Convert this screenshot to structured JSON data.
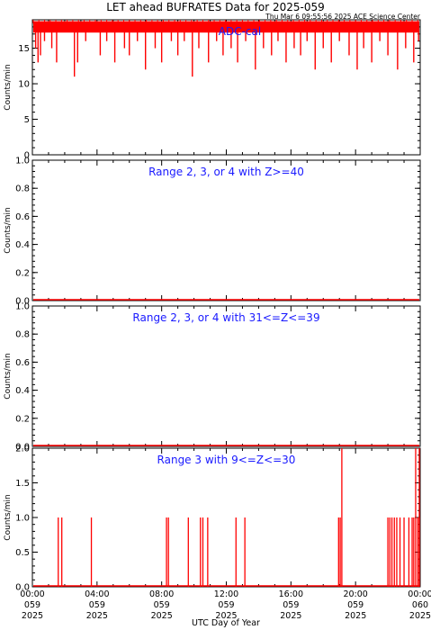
{
  "title": "LET ahead BUFRATES Data for 2025-059",
  "timestamp": "Thu Mar  6 09:55:56 2025 ACE Science Center",
  "x_axis_label": "UTC Day of Year",
  "x_ticks": [
    {
      "hour": 0,
      "time": "00:00",
      "doy": "059",
      "year": "2025"
    },
    {
      "hour": 4,
      "time": "04:00",
      "doy": "059",
      "year": "2025"
    },
    {
      "hour": 8,
      "time": "08:00",
      "doy": "059",
      "year": "2025"
    },
    {
      "hour": 12,
      "time": "12:00",
      "doy": "059",
      "year": "2025"
    },
    {
      "hour": 16,
      "time": "16:00",
      "doy": "059",
      "year": "2025"
    },
    {
      "hour": 20,
      "time": "20:00",
      "doy": "059",
      "year": "2025"
    },
    {
      "hour": 24,
      "time": "00:00",
      "doy": "060",
      "year": "2025"
    }
  ],
  "colors": {
    "data": "#ff0000",
    "panel_label": "#1a1aff",
    "axes": "#000000"
  },
  "chart_data": [
    {
      "type": "line",
      "title": "ADC-cal",
      "ylabel": "Counts/min",
      "xlim": [
        0,
        24
      ],
      "ylim": [
        0,
        19
      ],
      "yticks": [
        0,
        5,
        10,
        15
      ],
      "baseline": 18,
      "dips": [
        [
          0.2,
          15
        ],
        [
          0.35,
          13
        ],
        [
          0.5,
          14
        ],
        [
          0.75,
          16
        ],
        [
          1.2,
          15
        ],
        [
          1.5,
          13
        ],
        [
          2.6,
          11
        ],
        [
          2.8,
          13
        ],
        [
          3.3,
          16
        ],
        [
          4.2,
          14
        ],
        [
          4.6,
          16
        ],
        [
          5.1,
          13
        ],
        [
          5.7,
          15
        ],
        [
          6.0,
          14
        ],
        [
          6.5,
          16
        ],
        [
          7.0,
          12
        ],
        [
          7.6,
          15
        ],
        [
          8.0,
          13
        ],
        [
          8.6,
          16
        ],
        [
          9.0,
          14
        ],
        [
          9.4,
          16
        ],
        [
          9.9,
          11
        ],
        [
          10.3,
          15
        ],
        [
          10.9,
          13
        ],
        [
          11.4,
          16
        ],
        [
          11.8,
          14
        ],
        [
          12.3,
          15
        ],
        [
          12.7,
          13
        ],
        [
          13.2,
          16
        ],
        [
          13.8,
          12
        ],
        [
          14.3,
          15
        ],
        [
          14.8,
          14
        ],
        [
          15.2,
          16
        ],
        [
          15.7,
          13
        ],
        [
          16.2,
          15
        ],
        [
          16.6,
          14
        ],
        [
          17.0,
          16
        ],
        [
          17.5,
          12
        ],
        [
          18.0,
          15
        ],
        [
          18.5,
          13
        ],
        [
          19.0,
          16
        ],
        [
          19.6,
          14
        ],
        [
          20.1,
          12
        ],
        [
          20.5,
          15
        ],
        [
          21.0,
          13
        ],
        [
          21.5,
          16
        ],
        [
          22.0,
          14
        ],
        [
          22.6,
          12
        ],
        [
          23.1,
          15
        ],
        [
          23.6,
          13
        ],
        [
          23.9,
          16
        ]
      ]
    },
    {
      "type": "line",
      "title": "Range 2, 3, or 4 with Z>=40",
      "ylabel": "Counts/min",
      "xlim": [
        0,
        24
      ],
      "ylim": [
        0,
        1
      ],
      "yticks": [
        0.0,
        0.2,
        0.4,
        0.6,
        0.8,
        1.0
      ],
      "baseline": 0,
      "spikes": []
    },
    {
      "type": "line",
      "title": "Range 2, 3, or 4 with 31<=Z<=39",
      "ylabel": "Counts/min",
      "xlim": [
        0,
        24
      ],
      "ylim": [
        0,
        1
      ],
      "yticks": [
        0.0,
        0.2,
        0.4,
        0.6,
        0.8,
        1.0
      ],
      "baseline": 0,
      "spikes": []
    },
    {
      "type": "line",
      "title": "Range 3 with 9<=Z<=30",
      "ylabel": "Counts/min",
      "xlim": [
        0,
        24
      ],
      "ylim": [
        0,
        2
      ],
      "yticks": [
        0.0,
        0.5,
        1.0,
        1.5,
        2.0
      ],
      "baseline": 0,
      "spikes": [
        [
          1.6,
          1
        ],
        [
          1.82,
          1
        ],
        [
          3.65,
          1
        ],
        [
          8.3,
          1
        ],
        [
          8.42,
          1
        ],
        [
          9.65,
          1
        ],
        [
          10.4,
          1
        ],
        [
          10.55,
          1
        ],
        [
          10.85,
          1
        ],
        [
          12.6,
          1
        ],
        [
          13.15,
          1
        ],
        [
          18.95,
          1
        ],
        [
          19.05,
          1
        ],
        [
          19.15,
          2
        ],
        [
          22.0,
          1
        ],
        [
          22.12,
          1
        ],
        [
          22.25,
          1
        ],
        [
          22.4,
          1
        ],
        [
          22.55,
          1
        ],
        [
          22.75,
          1
        ],
        [
          23.0,
          1
        ],
        [
          23.3,
          1
        ],
        [
          23.5,
          1
        ],
        [
          23.6,
          1
        ],
        [
          23.72,
          2
        ],
        [
          23.85,
          1
        ],
        [
          23.95,
          1
        ],
        [
          24.0,
          2
        ]
      ]
    }
  ]
}
